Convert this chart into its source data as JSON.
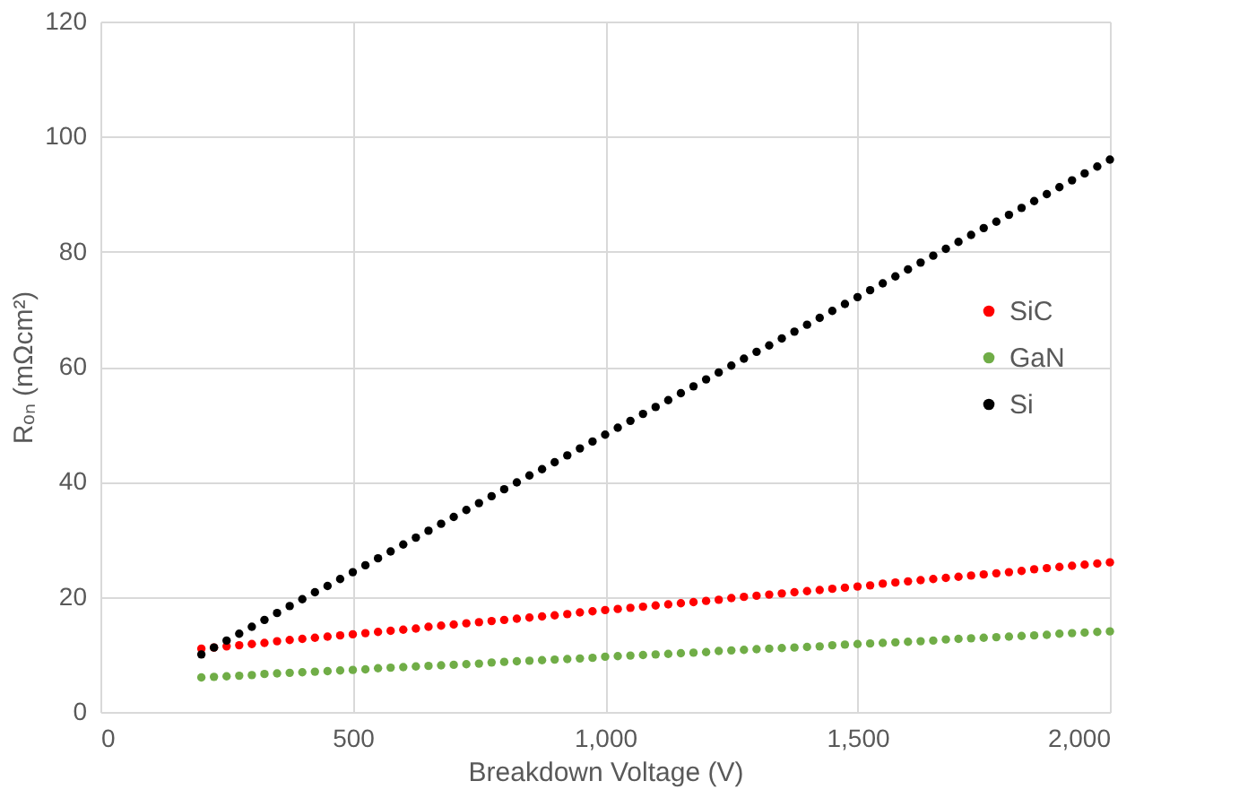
{
  "chart_data": {
    "type": "scatter",
    "xlabel": "Breakdown Voltage (V)",
    "ylabel": "Rₒₙ (mΩcm²)",
    "x": [
      200,
      225,
      250,
      275,
      300,
      325,
      350,
      375,
      400,
      425,
      450,
      475,
      500,
      525,
      550,
      575,
      600,
      625,
      650,
      675,
      700,
      725,
      750,
      775,
      800,
      825,
      850,
      875,
      900,
      925,
      950,
      975,
      1000,
      1025,
      1050,
      1075,
      1100,
      1125,
      1150,
      1175,
      1200,
      1225,
      1250,
      1275,
      1300,
      1325,
      1350,
      1375,
      1400,
      1425,
      1450,
      1475,
      1500,
      1525,
      1550,
      1575,
      1600,
      1625,
      1650,
      1675,
      1700,
      1725,
      1750,
      1775,
      1800,
      1825,
      1850,
      1875,
      1900,
      1925,
      1950,
      1975,
      2000
    ],
    "series": [
      {
        "name": "SiC",
        "color": "#ff0000",
        "values": [
          11.0,
          11.2,
          11.4,
          11.6,
          11.8,
          12.0,
          12.3,
          12.5,
          12.7,
          12.9,
          13.1,
          13.3,
          13.5,
          13.7,
          13.9,
          14.1,
          14.3,
          14.5,
          14.8,
          15.0,
          15.2,
          15.4,
          15.6,
          15.8,
          16.0,
          16.2,
          16.4,
          16.6,
          16.8,
          17.0,
          17.3,
          17.5,
          17.7,
          17.9,
          18.1,
          18.3,
          18.5,
          18.7,
          18.9,
          19.1,
          19.3,
          19.5,
          19.8,
          20.0,
          20.2,
          20.4,
          20.6,
          20.8,
          21.0,
          21.2,
          21.4,
          21.6,
          21.8,
          22.0,
          22.3,
          22.5,
          22.7,
          22.9,
          23.1,
          23.3,
          23.5,
          23.7,
          23.9,
          24.1,
          24.3,
          24.5,
          24.8,
          25.0,
          25.2,
          25.4,
          25.6,
          25.8,
          26.0
        ]
      },
      {
        "name": "GaN",
        "color": "#70ad47",
        "values": [
          6.0,
          6.1,
          6.2,
          6.3,
          6.4,
          6.6,
          6.7,
          6.8,
          6.9,
          7.0,
          7.1,
          7.2,
          7.3,
          7.4,
          7.6,
          7.7,
          7.8,
          7.9,
          8.0,
          8.1,
          8.2,
          8.3,
          8.4,
          8.6,
          8.7,
          8.8,
          8.9,
          9.0,
          9.1,
          9.2,
          9.3,
          9.4,
          9.6,
          9.7,
          9.8,
          9.9,
          10.0,
          10.1,
          10.2,
          10.3,
          10.4,
          10.6,
          10.7,
          10.8,
          10.9,
          11.0,
          11.1,
          11.2,
          11.3,
          11.4,
          11.6,
          11.7,
          11.8,
          11.9,
          12.0,
          12.1,
          12.2,
          12.3,
          12.4,
          12.6,
          12.7,
          12.8,
          12.9,
          13.0,
          13.1,
          13.2,
          13.3,
          13.4,
          13.6,
          13.7,
          13.8,
          13.9,
          14.0
        ]
      },
      {
        "name": "Si",
        "color": "#000000",
        "values": [
          10.0,
          11.2,
          12.4,
          13.6,
          14.8,
          16.0,
          17.2,
          18.4,
          19.6,
          20.8,
          21.9,
          23.1,
          24.3,
          25.5,
          26.7,
          27.9,
          29.1,
          30.3,
          31.5,
          32.7,
          33.9,
          35.1,
          36.3,
          37.5,
          38.7,
          39.9,
          41.1,
          42.2,
          43.4,
          44.6,
          45.8,
          47.0,
          48.2,
          49.4,
          50.6,
          51.8,
          53.0,
          54.2,
          55.4,
          56.6,
          57.8,
          59.0,
          60.2,
          61.4,
          62.6,
          63.7,
          64.9,
          66.1,
          67.3,
          68.5,
          69.7,
          70.9,
          72.1,
          73.3,
          74.5,
          75.7,
          76.9,
          78.1,
          79.3,
          80.5,
          81.7,
          82.9,
          84.1,
          85.2,
          86.4,
          87.6,
          88.8,
          90.0,
          91.2,
          92.4,
          93.6,
          94.8,
          96.0
        ]
      }
    ],
    "xlim": [
      0,
      2000
    ],
    "xticks": [
      0,
      500,
      {
        "value": 1000,
        "label": "1,000"
      },
      {
        "value": 1500,
        "label": "1,500"
      },
      {
        "value": 2000,
        "label": "2,000"
      }
    ],
    "ylim": [
      0,
      120
    ],
    "yticks": [
      0,
      20,
      40,
      60,
      80,
      100,
      120
    ],
    "grid": true,
    "legend": "right",
    "marker": "circle"
  }
}
